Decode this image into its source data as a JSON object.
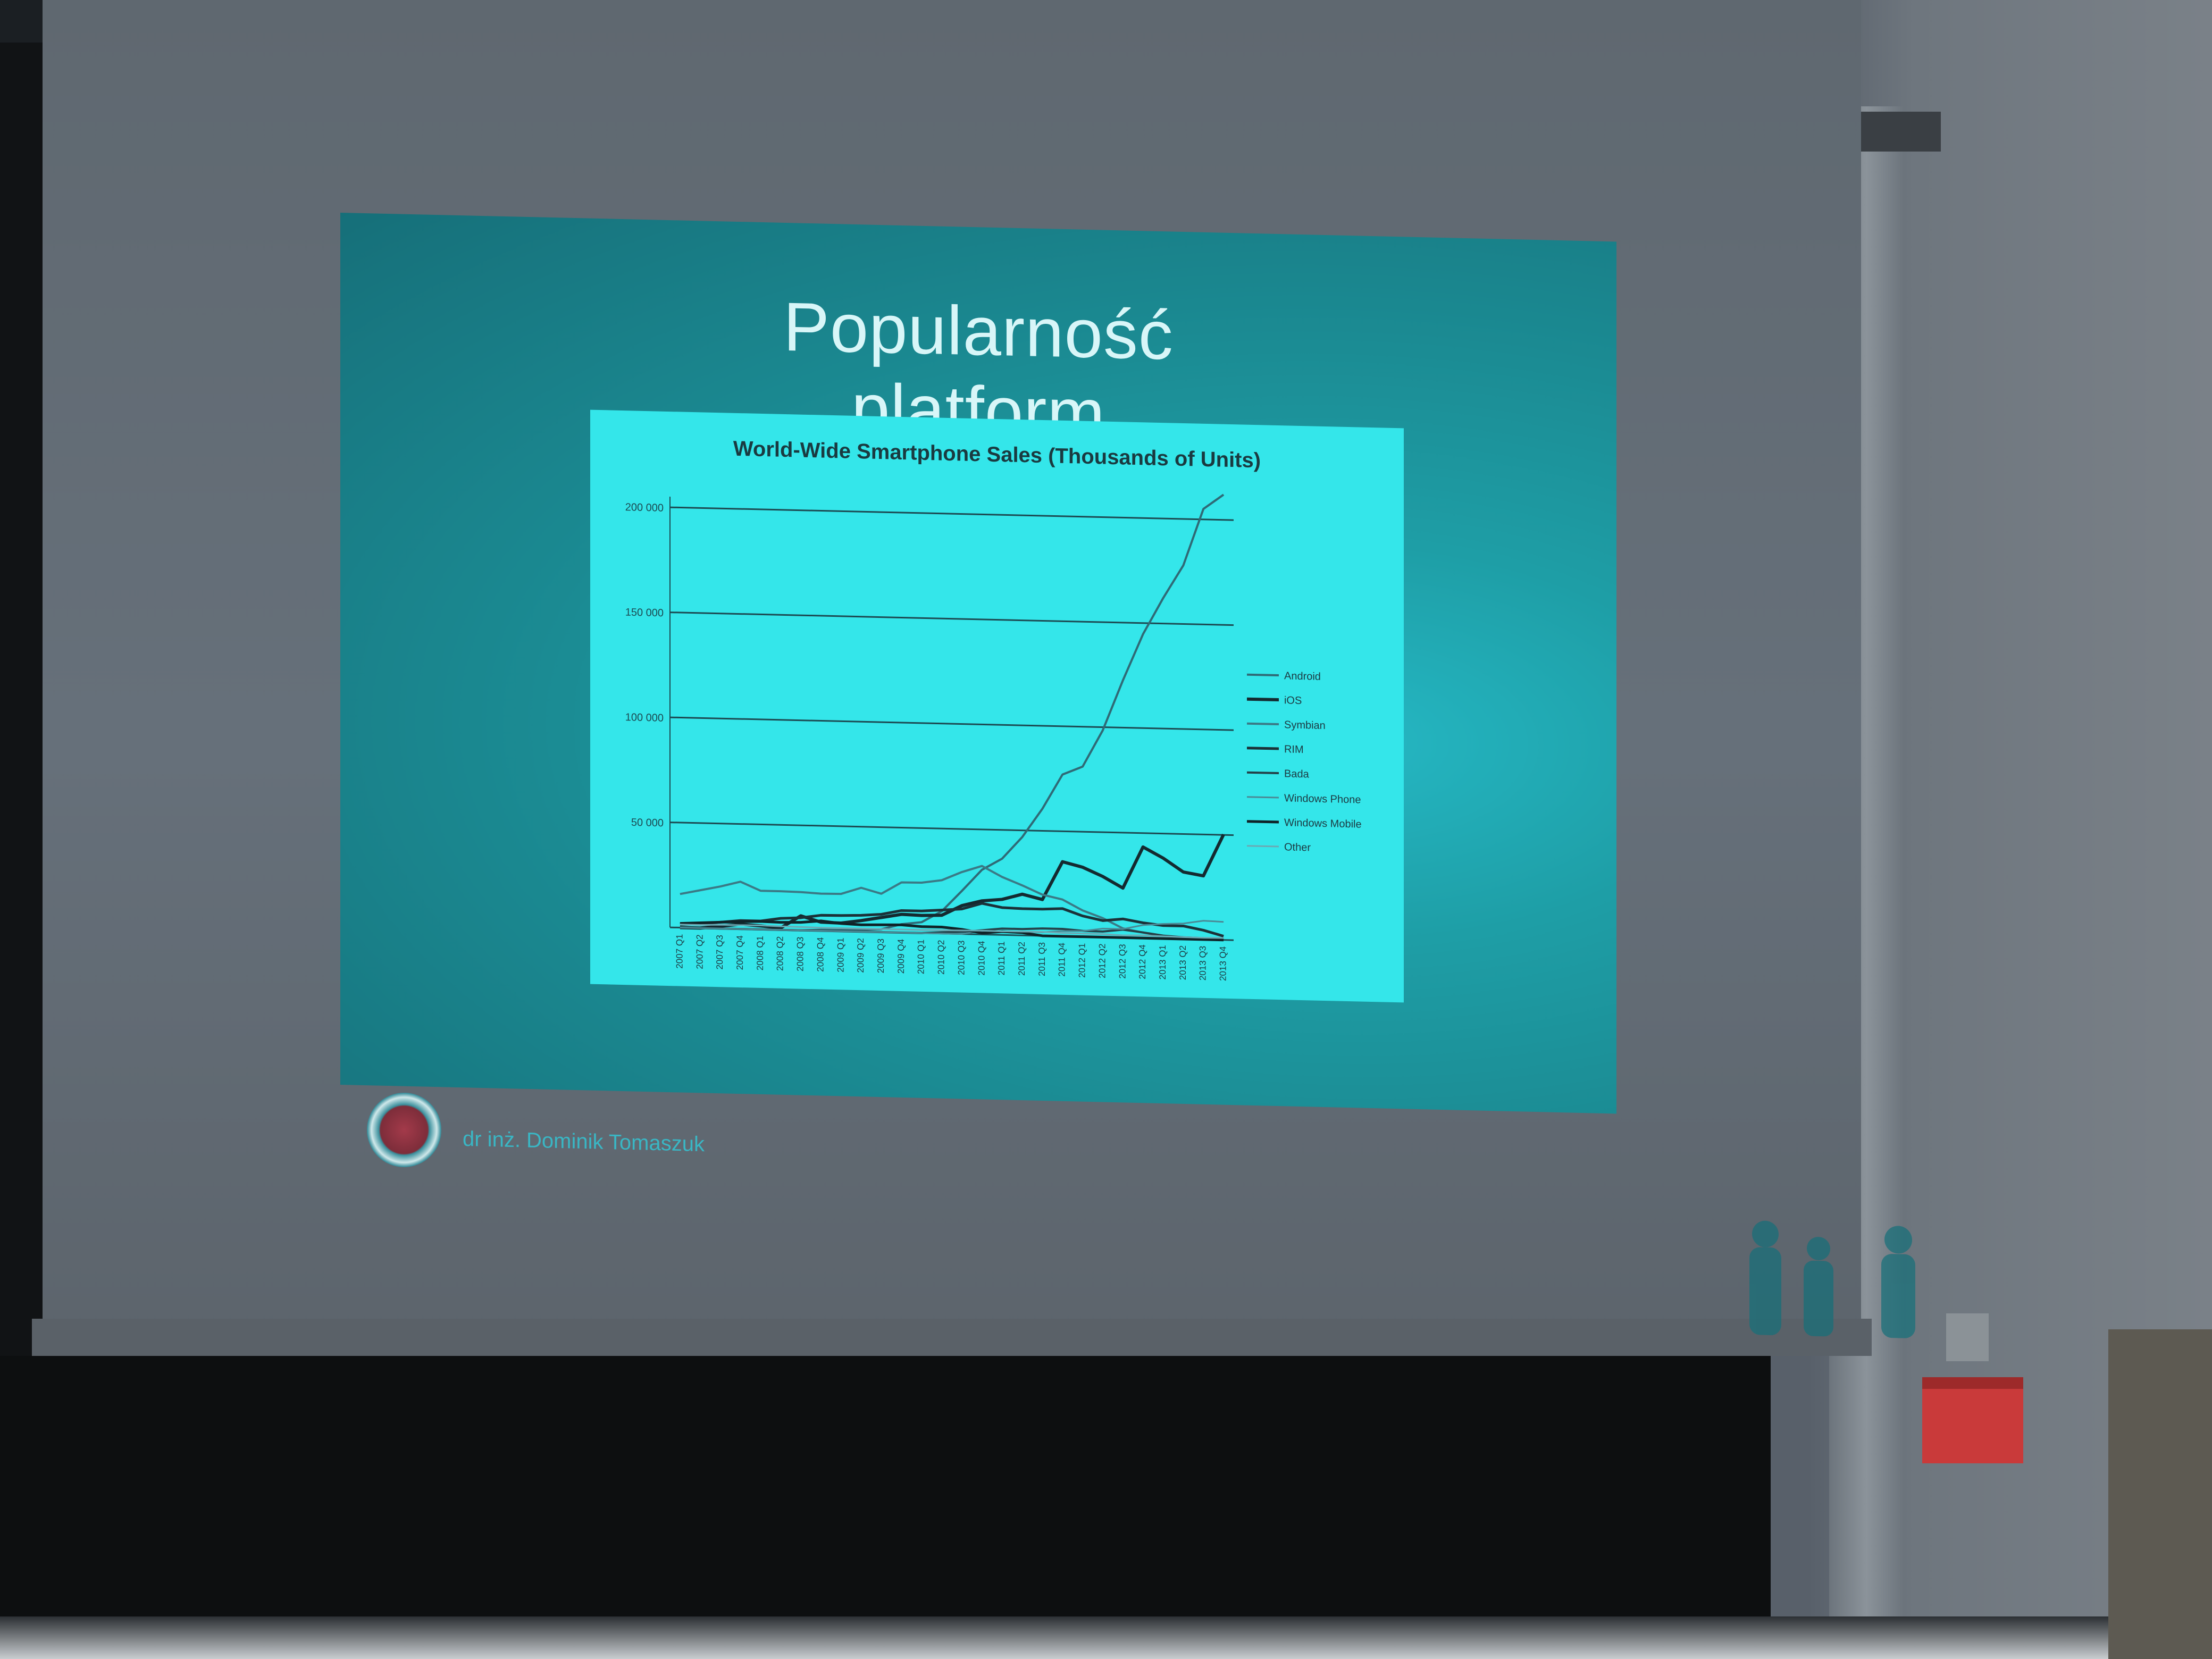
{
  "slide": {
    "title": "Popularność platform",
    "footer_author": "dr inż. Dominik Tomaszuk"
  },
  "colors": {
    "slide_background": "#1b8c94",
    "chart_background": "#34e6ea",
    "title_text": "#d8f6f8"
  },
  "chart_data": {
    "type": "line",
    "title": "World-Wide Smartphone Sales (Thousands of Units)",
    "x": [
      "2007 Q1",
      "2007 Q2",
      "2007 Q3",
      "2007 Q4",
      "2008 Q1",
      "2008 Q2",
      "2008 Q3",
      "2008 Q4",
      "2009 Q1",
      "2009 Q2",
      "2009 Q3",
      "2009 Q4",
      "2010 Q1",
      "2010 Q2",
      "2010 Q3",
      "2010 Q4",
      "2011 Q1",
      "2011 Q2",
      "2011 Q3",
      "2011 Q4",
      "2012 Q1",
      "2012 Q2",
      "2012 Q3",
      "2012 Q4",
      "2013 Q1",
      "2013 Q2",
      "2013 Q3",
      "2013 Q4"
    ],
    "ytick_labels": [
      "200 000",
      "150 000",
      "100 000",
      "50 000"
    ],
    "ylim": [
      0,
      200000
    ],
    "legend_position": "right",
    "grid": true,
    "series": [
      {
        "name": "Android",
        "values": [
          0,
          0,
          0,
          0,
          0,
          0,
          0,
          500,
          600,
          800,
          1400,
          4000,
          5200,
          10600,
          20500,
          30800,
          36300,
          46800,
          60500,
          77000,
          81000,
          98500,
          122500,
          144700,
          162100,
          177900,
          205000,
          212000
        ]
      },
      {
        "name": "iOS",
        "values": [
          0,
          0,
          1100,
          2300,
          1700,
          900,
          6900,
          4100,
          3900,
          5300,
          7000,
          8700,
          8400,
          8700,
          13500,
          16000,
          16900,
          19600,
          17300,
          35500,
          33100,
          28900,
          23600,
          43400,
          38300,
          31900,
          30300,
          50200
        ]
      },
      {
        "name": "Symbian",
        "values": [
          16000,
          18000,
          20000,
          22500,
          18400,
          18400,
          18200,
          17700,
          17800,
          20900,
          18300,
          23900,
          24000,
          25400,
          29500,
          32600,
          27600,
          23800,
          19600,
          17500,
          12500,
          9100,
          4400,
          2600,
          1300,
          600,
          400,
          300
        ]
      },
      {
        "name": "RIM",
        "values": [
          1500,
          2000,
          3000,
          4000,
          4000,
          5500,
          6000,
          7400,
          7500,
          7800,
          8500,
          10500,
          10500,
          11200,
          11900,
          14800,
          13000,
          12700,
          12700,
          13200,
          9900,
          7900,
          8900,
          7300,
          6200,
          6200,
          4400,
          1800
        ]
      },
      {
        "name": "Bada",
        "values": [
          0,
          0,
          0,
          0,
          0,
          0,
          0,
          0,
          0,
          0,
          0,
          0,
          0,
          600,
          1000,
          2000,
          3000,
          3000,
          3500,
          3500,
          2800,
          2700,
          3800,
          2700,
          1400,
          800,
          600,
          300
        ]
      },
      {
        "name": "Windows Phone",
        "values": [
          0,
          0,
          0,
          0,
          0,
          0,
          0,
          0,
          0,
          0,
          0,
          0,
          0,
          0,
          0,
          1600,
          1600,
          1700,
          1700,
          2500,
          2700,
          4100,
          4100,
          6200,
          7000,
          7400,
          8900,
          8600
        ]
      },
      {
        "name": "Windows Mobile",
        "values": [
          2000,
          2500,
          3000,
          3500,
          3800,
          3600,
          3800,
          4700,
          3700,
          3300,
          3500,
          3700,
          3100,
          3100,
          2200,
          700,
          1600,
          1300,
          0,
          0,
          0,
          0,
          0,
          0,
          0,
          0,
          0,
          0
        ]
      },
      {
        "name": "Other",
        "values": [
          1500,
          1500,
          1800,
          1800,
          1900,
          1700,
          1600,
          1500,
          1500,
          1500,
          1500,
          1500,
          1500,
          1600,
          1700,
          1800,
          1700,
          1800,
          1900,
          1600,
          1500,
          1500,
          1100,
          1300,
          1100,
          900,
          800,
          900
        ]
      }
    ]
  }
}
